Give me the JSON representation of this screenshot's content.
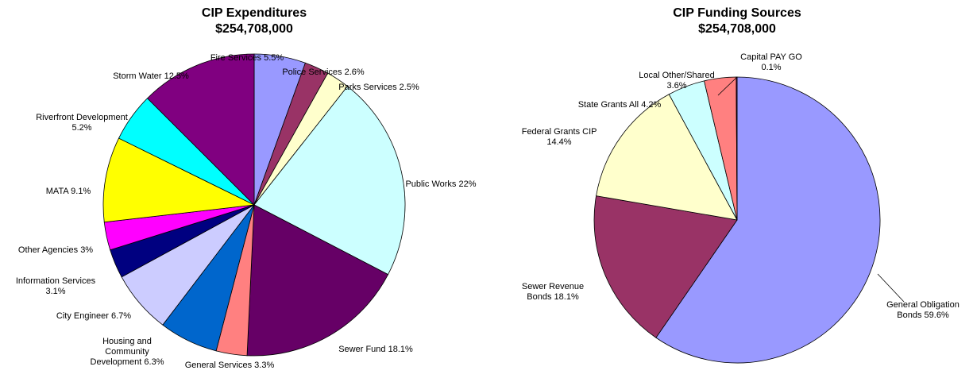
{
  "chart_data": [
    {
      "type": "pie",
      "title": "CIP Expenditures",
      "subtitle": "$254,708,000",
      "categories": [
        "Fire Services",
        "Police Services",
        "Parks Services",
        "Public Works",
        "Sewer Fund",
        "General Services",
        "Housing and Community Development",
        "City Engineer",
        "Information Services",
        "Other Agencies",
        "MATA",
        "Riverfront Development",
        "Storm Water"
      ],
      "values": [
        5.5,
        2.6,
        2.5,
        22,
        18.1,
        3.3,
        6.3,
        6.7,
        3.1,
        3,
        9.1,
        5.2,
        12.5
      ],
      "value_labels": [
        "5.5%",
        "2.6%",
        "2.5%",
        "22%",
        "18.1%",
        "3.3%",
        "6.3%",
        "6.7%",
        "3.1%",
        "3%",
        "9.1%",
        "5.2%",
        "12.5%"
      ],
      "colors": [
        "#9999ff",
        "#993366",
        "#ffffcc",
        "#ccffff",
        "#660066",
        "#ff8080",
        "#0066cc",
        "#ccccff",
        "#000080",
        "#ff00ff",
        "#ffff00",
        "#00ffff",
        "#800080"
      ]
    },
    {
      "type": "pie",
      "title": "CIP Funding Sources",
      "subtitle": "$254,708,000",
      "categories": [
        "General Obligation Bonds",
        "Sewer Revenue Bonds",
        "Federal Grants CIP",
        "State Grants All",
        "Local Other/Shared",
        "Capital PAY GO"
      ],
      "values": [
        59.6,
        18.1,
        14.4,
        4.2,
        3.6,
        0.1
      ],
      "value_labels": [
        "59.6%",
        "18.1%",
        "14.4%",
        "4.2%",
        "3.6%",
        "0.1%"
      ],
      "colors": [
        "#9999ff",
        "#993366",
        "#ffffcc",
        "#ccffff",
        "#ff8080",
        "#660066"
      ]
    }
  ]
}
